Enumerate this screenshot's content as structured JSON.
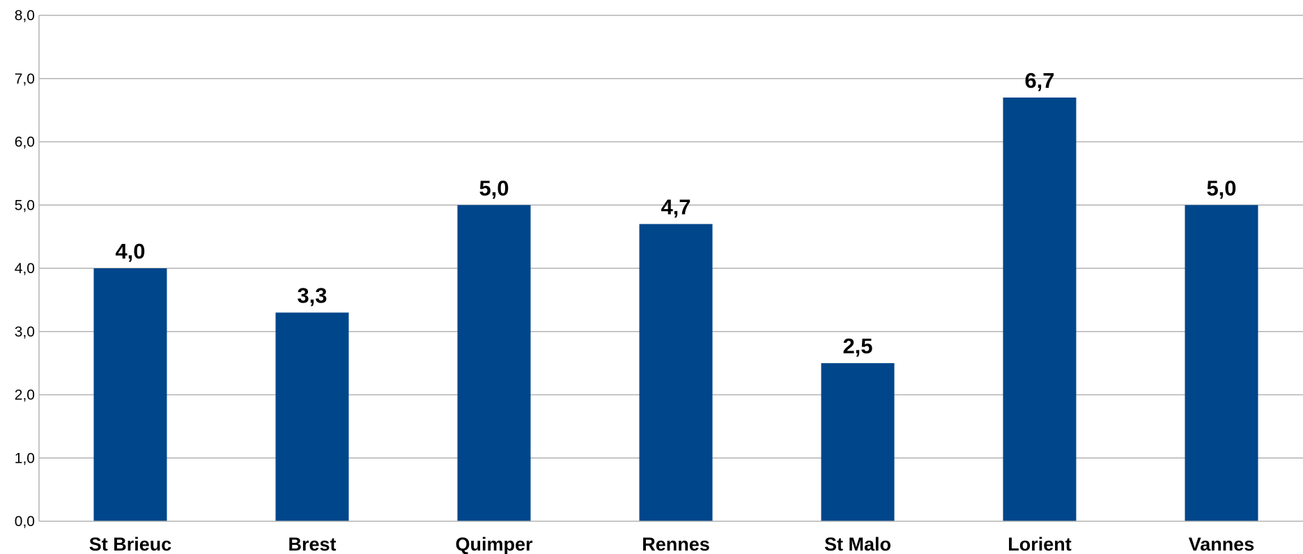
{
  "chart_data": {
    "type": "bar",
    "categories": [
      "St Brieuc",
      "Brest",
      "Quimper",
      "Rennes",
      "St Malo",
      "Lorient",
      "Vannes"
    ],
    "values": [
      4.0,
      3.3,
      5.0,
      4.7,
      2.5,
      6.7,
      5.0
    ],
    "data_labels": [
      "4,0",
      "3,3",
      "5,0",
      "4,7",
      "2,5",
      "6,7",
      "5,0"
    ],
    "y_ticks": [
      0,
      1,
      2,
      3,
      4,
      5,
      6,
      7,
      8
    ],
    "y_tick_labels": [
      "0,0",
      "1,0",
      "2,0",
      "3,0",
      "4,0",
      "5,0",
      "6,0",
      "7,0",
      "8,0"
    ],
    "ylim": [
      0,
      8
    ],
    "title": "",
    "xlabel": "",
    "ylabel": "",
    "grid": true,
    "legend": "none",
    "colors": {
      "bar": "#00468b",
      "grid": "#b3b3b3",
      "axis": "#b3b3b3",
      "text": "#000000"
    }
  }
}
